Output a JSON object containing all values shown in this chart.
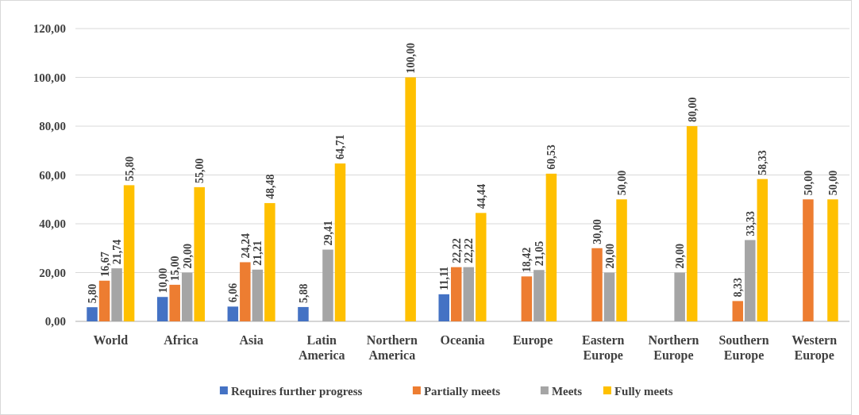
{
  "chart_data": {
    "type": "bar",
    "categories": [
      "World",
      "Africa",
      "Asia",
      "Latin America",
      "Northern America",
      "Oceania",
      "Europe",
      "Eastern Europe",
      "Northern Europe",
      "Southern Europe",
      "Western Europe"
    ],
    "series": [
      {
        "name": "Requires further progress",
        "color": "#4472c4",
        "values": [
          5.8,
          10,
          6.06,
          5.88,
          null,
          11.11,
          null,
          null,
          null,
          null,
          null
        ],
        "value_labels": [
          "5,80",
          "10,00",
          "6,06",
          "5,88",
          null,
          "11,11",
          null,
          null,
          null,
          null,
          null
        ]
      },
      {
        "name": "Partially meets",
        "color": "#ed7d31",
        "values": [
          16.67,
          15,
          24.24,
          null,
          null,
          22.22,
          18.42,
          30,
          null,
          8.33,
          50
        ],
        "value_labels": [
          "16,67",
          "15,00",
          "24,24",
          null,
          null,
          "22,22",
          "18,42",
          "30,00",
          null,
          "8,33",
          "50,00"
        ]
      },
      {
        "name": "Meets",
        "color": "#a5a5a5",
        "values": [
          21.74,
          20,
          21.21,
          29.41,
          null,
          22.22,
          21.05,
          20,
          20,
          33.33,
          null
        ],
        "value_labels": [
          "21,74",
          "20,00",
          "21,21",
          "29,41",
          null,
          "22,22",
          "21,05",
          "20,00",
          "20,00",
          "33,33",
          null
        ]
      },
      {
        "name": "Fully meets",
        "color": "#ffc000",
        "values": [
          55.8,
          55,
          48.48,
          64.71,
          100,
          44.44,
          60.53,
          50,
          80,
          58.33,
          50
        ],
        "value_labels": [
          "55,80",
          "55,00",
          "48,48",
          "64,71",
          "100,00",
          "44,44",
          "60,53",
          "50,00",
          "80,00",
          "58,33",
          "50,00"
        ]
      }
    ],
    "ylim": [
      0,
      120
    ],
    "yticks": [
      {
        "value": 0,
        "label": "0,00"
      },
      {
        "value": 20,
        "label": "20,00"
      },
      {
        "value": 40,
        "label": "40,00"
      },
      {
        "value": 60,
        "label": "60,00"
      },
      {
        "value": 80,
        "label": "80,00"
      },
      {
        "value": 100,
        "label": "100,00"
      },
      {
        "value": 120,
        "label": "120,00"
      }
    ],
    "grid": "y",
    "legend": "bottom"
  }
}
